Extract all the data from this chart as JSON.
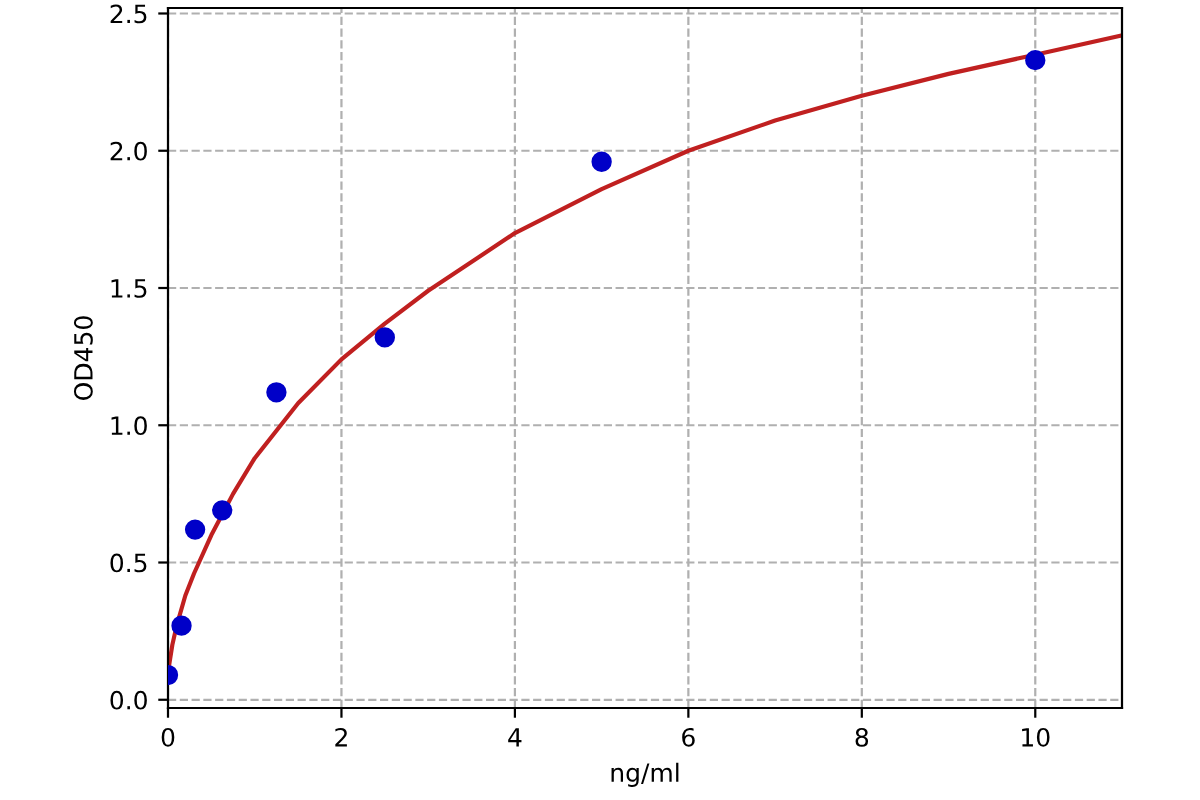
{
  "chart_data": {
    "type": "scatter",
    "xlabel": "ng/ml",
    "ylabel": "OD450",
    "series": [
      {
        "color": "#0000c8",
        "marker": "circle",
        "x": [
          0,
          0.156,
          0.3125,
          0.625,
          1.25,
          2.5,
          5,
          10
        ],
        "values": [
          0.09,
          0.27,
          0.62,
          0.69,
          1.12,
          1.32,
          1.96,
          2.33
        ]
      },
      {
        "type": "line",
        "color": "#c02020",
        "marker": "none",
        "line_style": "solid",
        "x": [
          0,
          0.05,
          0.1,
          0.2,
          0.3,
          0.5,
          0.75,
          1,
          1.5,
          2,
          2.5,
          3,
          4,
          5,
          6,
          7,
          8,
          9,
          10,
          11
        ],
        "values": [
          0.1,
          0.2,
          0.27,
          0.38,
          0.46,
          0.6,
          0.75,
          0.88,
          1.08,
          1.24,
          1.37,
          1.49,
          1.7,
          1.86,
          2.0,
          2.11,
          2.2,
          2.28,
          2.35,
          2.42
        ]
      }
    ],
    "xlim": [
      0,
      11
    ],
    "xticks": [
      0,
      2,
      4,
      6,
      8,
      10
    ],
    "ylim": [
      -0.03,
      2.52
    ],
    "yticks": [
      {
        "value": 0,
        "label": "0.0"
      },
      {
        "value": 0.5,
        "label": "0.5"
      },
      {
        "value": 1,
        "label": "1.0"
      },
      {
        "value": 1.5,
        "label": "1.5"
      },
      {
        "value": 2,
        "label": "2.0"
      },
      {
        "value": 2.5,
        "label": "2.5"
      }
    ],
    "grid": true
  }
}
